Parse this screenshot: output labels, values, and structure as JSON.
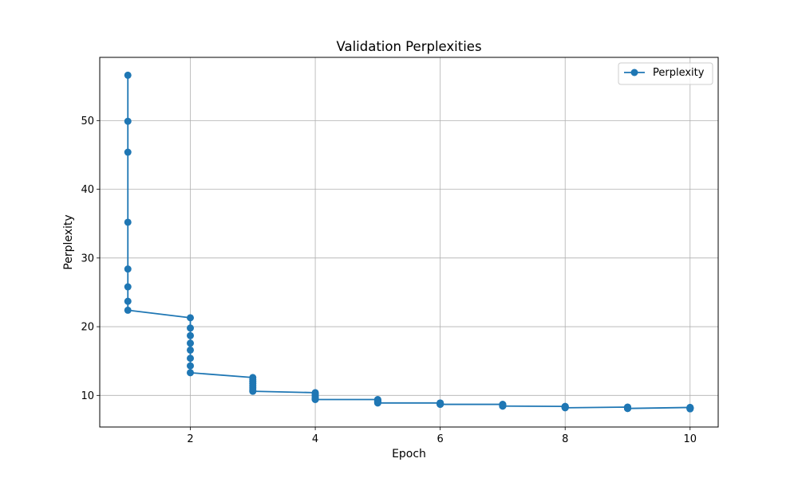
{
  "chart_data": {
    "type": "line",
    "title": "Validation Perplexities",
    "xlabel": "Epoch",
    "ylabel": "Perplexity",
    "xlim": [
      0.55,
      10.45
    ],
    "ylim": [
      5.4,
      59.2
    ],
    "xticks": [
      2,
      4,
      6,
      8,
      10
    ],
    "yticks": [
      10,
      20,
      30,
      40,
      50
    ],
    "grid": true,
    "legend_position": "top-right",
    "series": [
      {
        "name": "Perplexity",
        "color": "#1f77b4",
        "marker": "circle",
        "points": [
          [
            1,
            56.6
          ],
          [
            1,
            49.9
          ],
          [
            1,
            45.4
          ],
          [
            1,
            35.2
          ],
          [
            1,
            28.4
          ],
          [
            1,
            25.8
          ],
          [
            1,
            23.7
          ],
          [
            1,
            22.4
          ],
          [
            2,
            21.3
          ],
          [
            2,
            19.8
          ],
          [
            2,
            18.7
          ],
          [
            2,
            17.6
          ],
          [
            2,
            16.6
          ],
          [
            2,
            15.4
          ],
          [
            2,
            14.3
          ],
          [
            2,
            13.3
          ],
          [
            3,
            12.6
          ],
          [
            3,
            12.3
          ],
          [
            3,
            12.0
          ],
          [
            3,
            11.7
          ],
          [
            3,
            11.4
          ],
          [
            3,
            11.1
          ],
          [
            3,
            10.8
          ],
          [
            3,
            10.6
          ],
          [
            4,
            10.4
          ],
          [
            4,
            10.2
          ],
          [
            4,
            10.0
          ],
          [
            4,
            9.8
          ],
          [
            4,
            9.6
          ],
          [
            4,
            9.5
          ],
          [
            4,
            9.45
          ],
          [
            4,
            9.4
          ],
          [
            5,
            9.4
          ],
          [
            5,
            9.35
          ],
          [
            5,
            9.3
          ],
          [
            5,
            9.2
          ],
          [
            5,
            9.1
          ],
          [
            5,
            9.05
          ],
          [
            5,
            9.0
          ],
          [
            5,
            8.9
          ],
          [
            6,
            8.9
          ],
          [
            6,
            8.88
          ],
          [
            6,
            8.85
          ],
          [
            6,
            8.8
          ],
          [
            6,
            8.78
          ],
          [
            6,
            8.75
          ],
          [
            6,
            8.72
          ],
          [
            6,
            8.7
          ],
          [
            7,
            8.7
          ],
          [
            7,
            8.65
          ],
          [
            7,
            8.6
          ],
          [
            7,
            8.55
          ],
          [
            7,
            8.5
          ],
          [
            7,
            8.48
          ],
          [
            7,
            8.45
          ],
          [
            7,
            8.45
          ],
          [
            8,
            8.4
          ],
          [
            8,
            8.38
          ],
          [
            8,
            8.35
          ],
          [
            8,
            8.3
          ],
          [
            8,
            8.28
          ],
          [
            8,
            8.25
          ],
          [
            8,
            8.22
          ],
          [
            8,
            8.2
          ],
          [
            9,
            8.3
          ],
          [
            9,
            8.27
          ],
          [
            9,
            8.23
          ],
          [
            9,
            8.2
          ],
          [
            9,
            8.17
          ],
          [
            9,
            8.13
          ],
          [
            9,
            8.1
          ],
          [
            9,
            8.1
          ],
          [
            10,
            8.25
          ],
          [
            10,
            8.22
          ],
          [
            10,
            8.2
          ],
          [
            10,
            8.17
          ],
          [
            10,
            8.13
          ],
          [
            10,
            8.1
          ],
          [
            10,
            8.06
          ],
          [
            10,
            8.05
          ]
        ]
      }
    ]
  }
}
